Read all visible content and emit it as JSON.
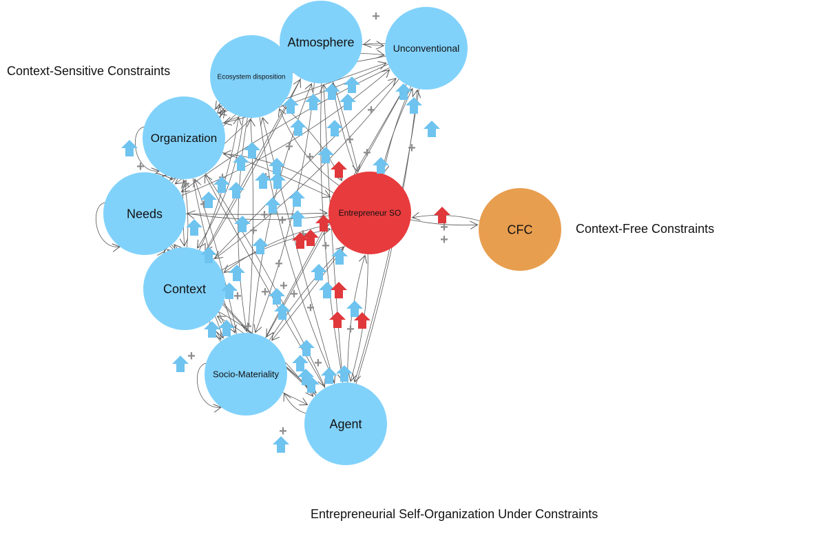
{
  "diagram": {
    "title": "Entrepreneurial Self-Organization Under Constraints",
    "context_sensitive_label": "Context-Sensitive Constraints",
    "context_free_label": "Context-Free Constraints",
    "colors": {
      "node_blue": "#81d2fb",
      "node_red": "#e83b3d",
      "node_orange": "#e89e4f",
      "edge": "#555555",
      "plus": "#8c8c8c",
      "arrow_blue": "#6ec3ef",
      "arrow_red": "#e0383b"
    },
    "edge_sign": "+",
    "nodes": [
      {
        "id": "atmosphere",
        "label": "Atmosphere"
      },
      {
        "id": "unconventional",
        "label": "Unconventional"
      },
      {
        "id": "ecosystem",
        "label": "Ecosystem disposition"
      },
      {
        "id": "organization",
        "label": "Organization"
      },
      {
        "id": "needs",
        "label": "Needs"
      },
      {
        "id": "entrepreneur",
        "label": "Entrepreneur SO"
      },
      {
        "id": "cfc",
        "label": "CFC"
      },
      {
        "id": "context",
        "label": "Context"
      },
      {
        "id": "socio",
        "label": "Socio-Materiality"
      },
      {
        "id": "agent",
        "label": "Agent"
      }
    ]
  }
}
